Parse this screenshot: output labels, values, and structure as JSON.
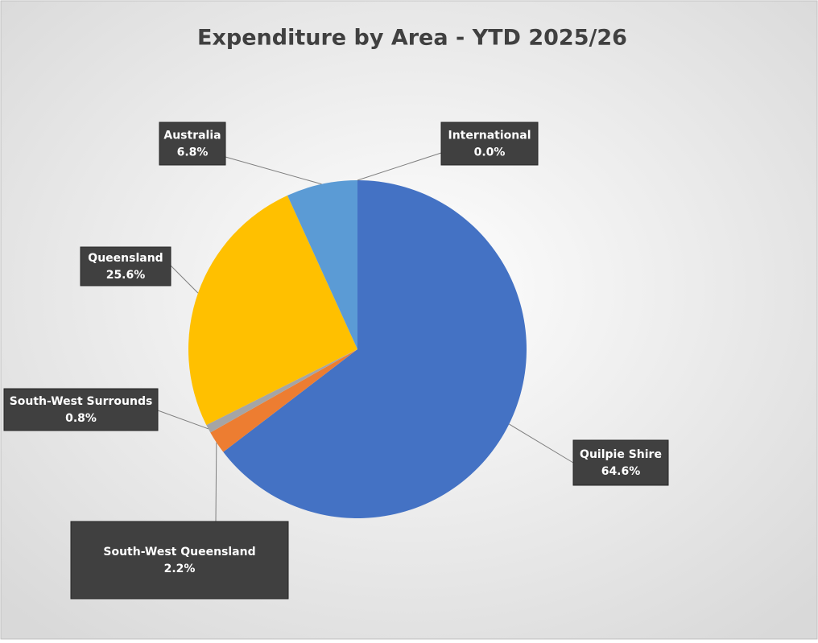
{
  "chart_data": {
    "type": "pie",
    "title": "Expenditure by Area - YTD 2025/26",
    "categories": [
      "Quilpie Shire",
      "South-West Queensland",
      "South-West Surrounds",
      "Queensland",
      "Australia",
      "International"
    ],
    "values": [
      64.6,
      2.2,
      0.8,
      25.6,
      6.8,
      0.0
    ],
    "value_labels": [
      "64.6%",
      "2.2%",
      "0.8%",
      "25.6%",
      "6.8%",
      "0.0%"
    ],
    "colors": [
      "#4472c4",
      "#ed7d31",
      "#a5a5a5",
      "#ffc000",
      "#5b9bd5",
      "#70ad47"
    ]
  }
}
